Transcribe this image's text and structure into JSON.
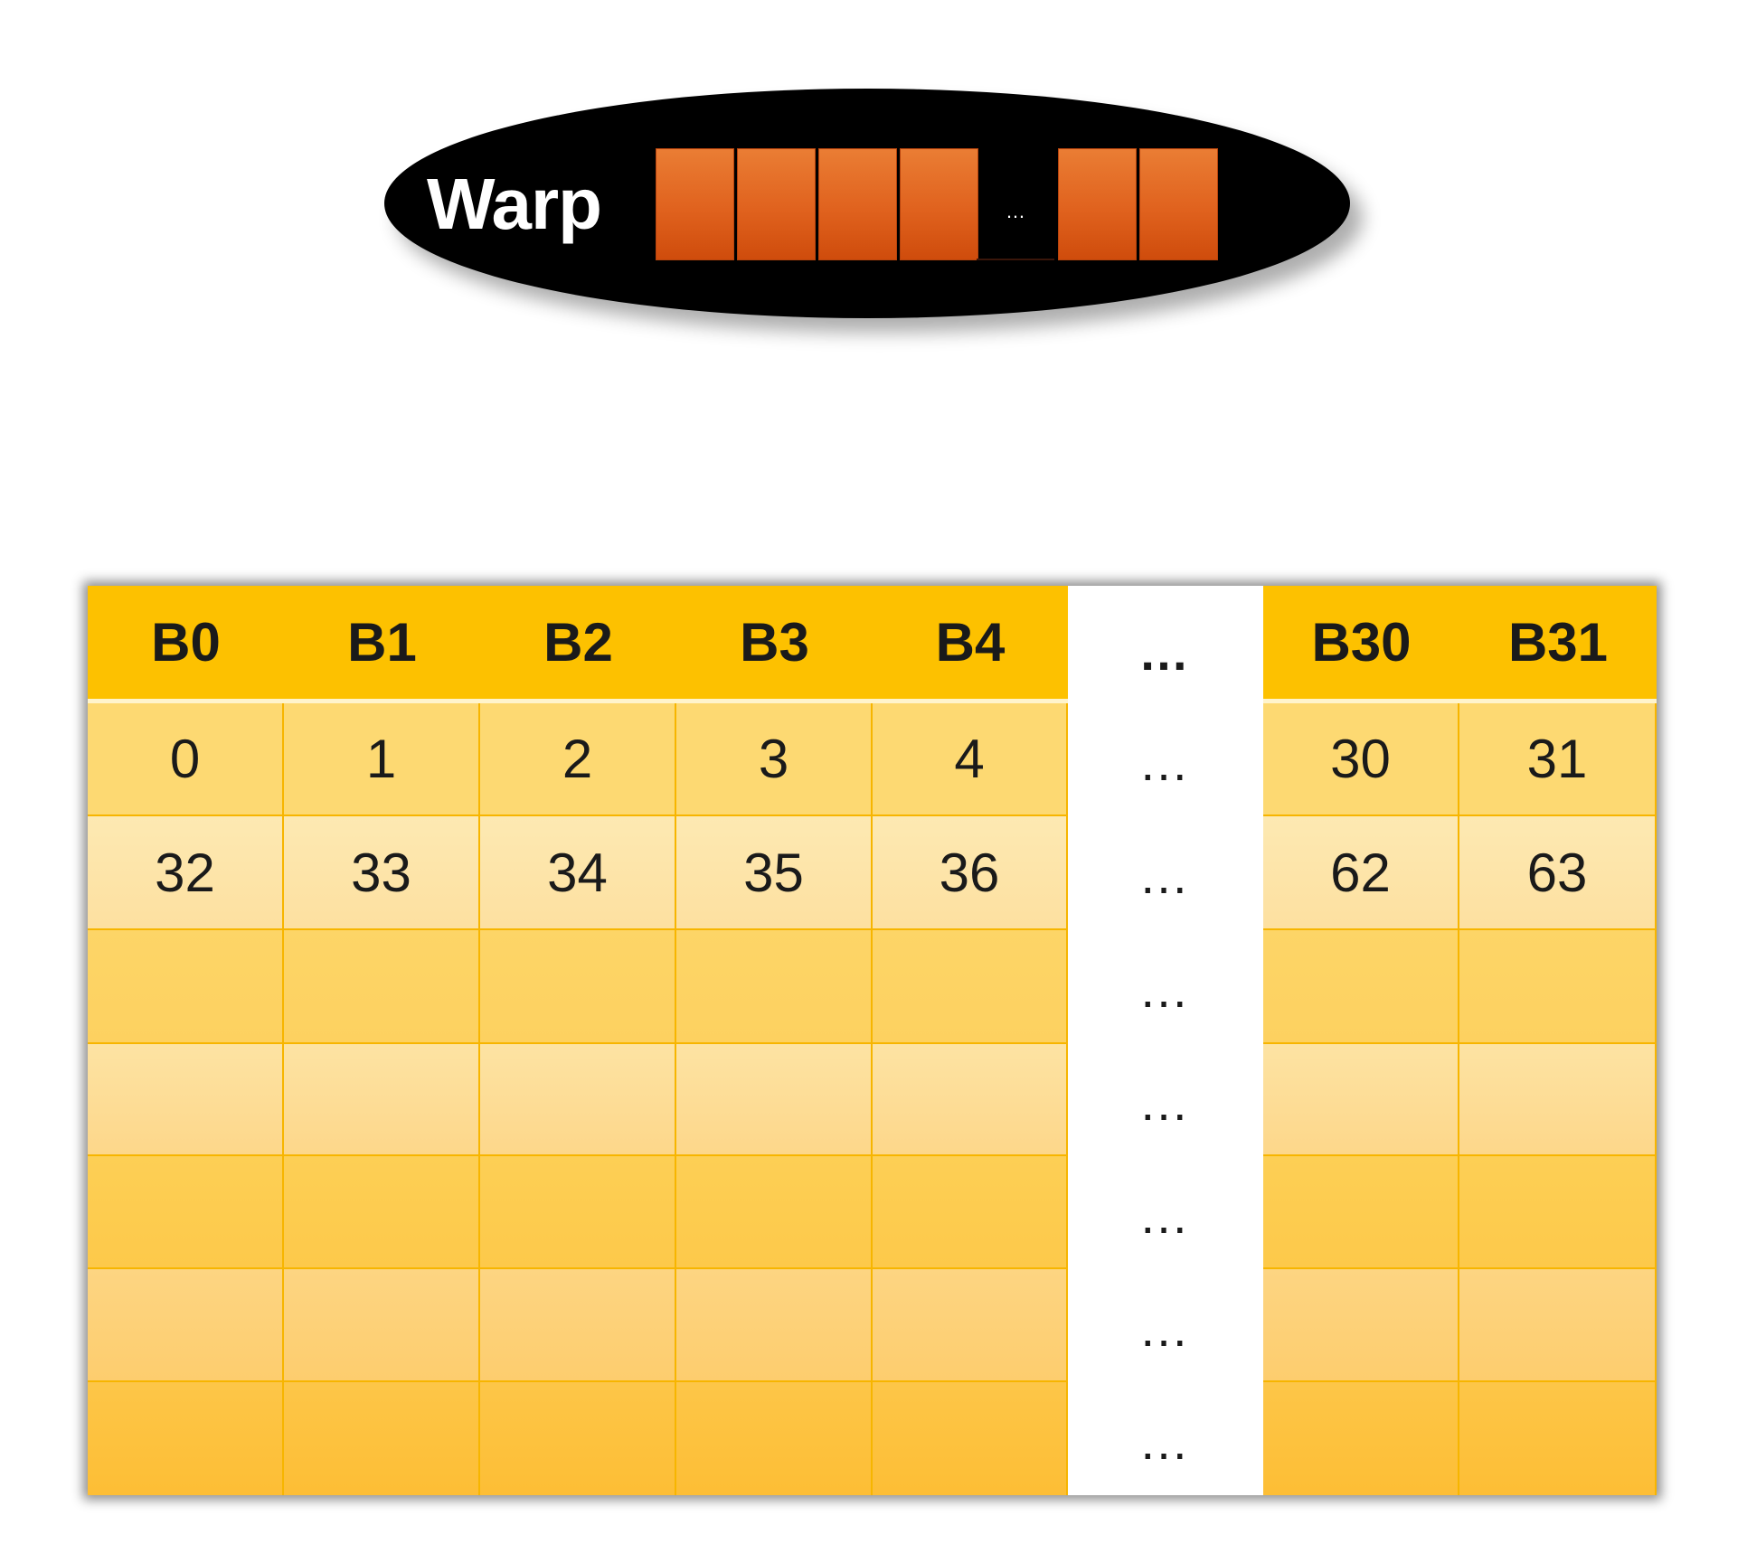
{
  "warp": {
    "label": "Warp",
    "thread_count_shown_before_ellipsis": 4,
    "thread_count_shown_after_ellipsis": 2,
    "ellipsis": "…",
    "colors": {
      "ellipse": "#000000",
      "thread": "#e0621e"
    }
  },
  "banks": {
    "headers": [
      "B0",
      "B1",
      "B2",
      "B3",
      "B4",
      "B30",
      "B31"
    ],
    "ellipsis": "…",
    "rows": [
      [
        "0",
        "1",
        "2",
        "3",
        "4",
        "30",
        "31"
      ],
      [
        "32",
        "33",
        "34",
        "35",
        "36",
        "62",
        "63"
      ],
      [
        "",
        "",
        "",
        "",
        "",
        "",
        ""
      ],
      [
        "",
        "",
        "",
        "",
        "",
        "",
        ""
      ],
      [
        "",
        "",
        "",
        "",
        "",
        "",
        ""
      ],
      [
        "",
        "",
        "",
        "",
        "",
        "",
        ""
      ],
      [
        "",
        "",
        "",
        "",
        "",
        "",
        ""
      ]
    ],
    "colors": {
      "header": "#fdc100",
      "cell": "#fdd05a",
      "grid": "#f7b500"
    }
  }
}
